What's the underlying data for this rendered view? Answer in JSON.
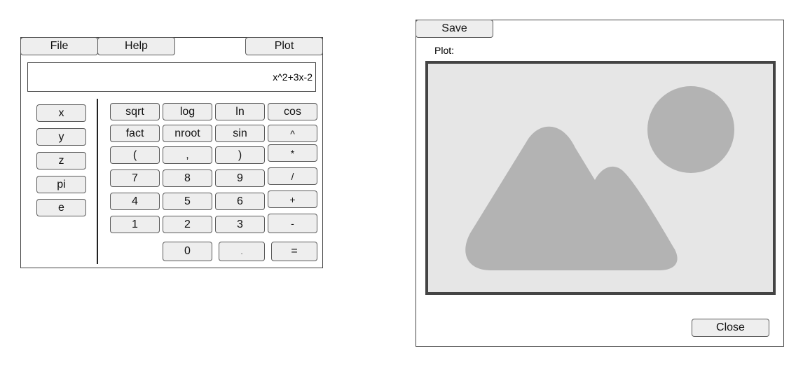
{
  "calculator": {
    "menu": {
      "file": "File",
      "help": "Help",
      "plot": "Plot"
    },
    "display_value": "x^2+3x-2",
    "variables": [
      "x",
      "y",
      "z",
      "pi",
      "e"
    ],
    "functions": {
      "sqrt": "sqrt",
      "log": "log",
      "ln": "ln",
      "cos": "cos",
      "fact": "fact",
      "nroot": "nroot",
      "sin": "sin",
      "pow": "^",
      "lparen": "(",
      "comma": ",",
      "rparen": ")",
      "mul": "*",
      "div": "/",
      "add": "+",
      "sub": "-"
    },
    "digits": {
      "d7": "7",
      "d8": "8",
      "d9": "9",
      "d4": "4",
      "d5": "5",
      "d6": "6",
      "d1": "1",
      "d2": "2",
      "d3": "3",
      "d0": "0",
      "dot": ".",
      "eq": "="
    }
  },
  "plot_window": {
    "save_label": "Save",
    "plot_label": "Plot:",
    "close_label": "Close",
    "image_placeholder_icon": "image-placeholder-icon"
  }
}
